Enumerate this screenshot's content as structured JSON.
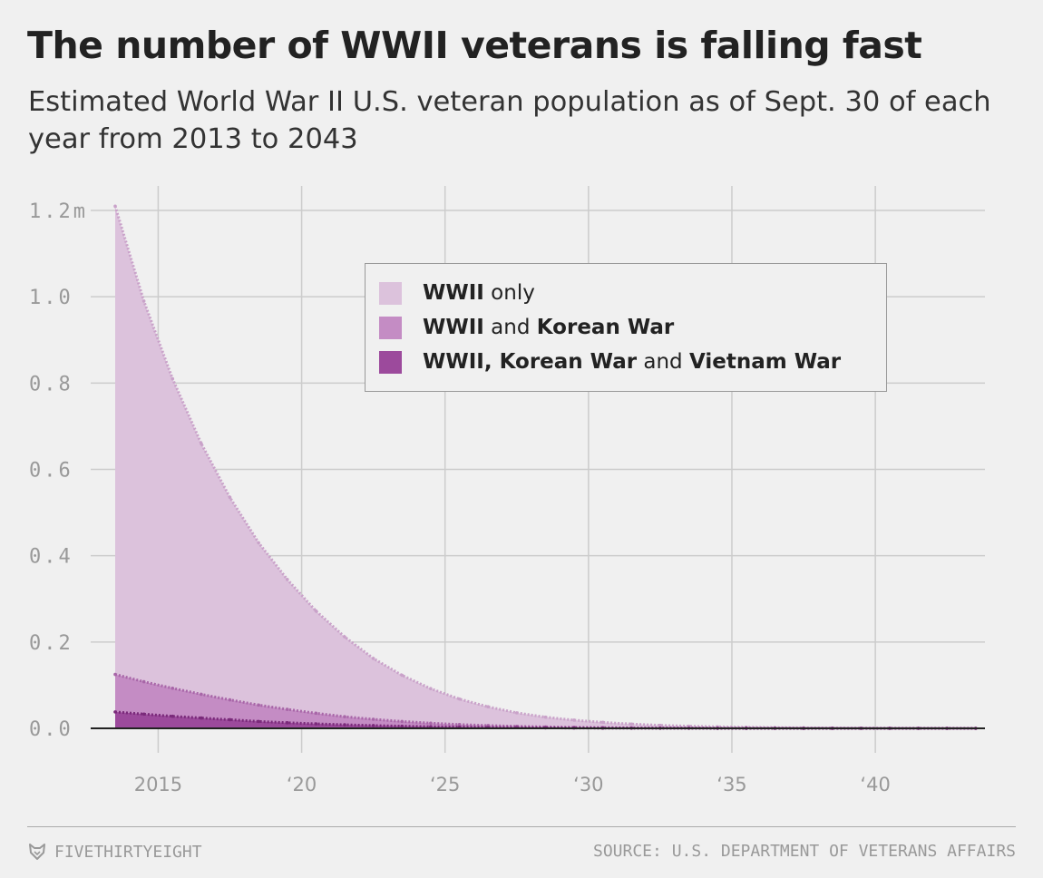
{
  "header": {
    "title": "The number of WWII veterans is falling fast",
    "subtitle": "Estimated World War II U.S. veteran population as of Sept. 30 of each year from 2013 to 2043"
  },
  "legend": {
    "items": [
      {
        "parts": [
          {
            "text": "WWII",
            "bold": true
          },
          {
            "text": " only",
            "bold": false
          }
        ],
        "color": "#dcc2dc"
      },
      {
        "parts": [
          {
            "text": "WWII",
            "bold": true
          },
          {
            "text": " and ",
            "bold": false
          },
          {
            "text": "Korean War",
            "bold": true
          }
        ],
        "color": "#c48cc4"
      },
      {
        "parts": [
          {
            "text": "WWII, Korean War",
            "bold": true
          },
          {
            "text": " and ",
            "bold": false
          },
          {
            "text": "Vietnam War",
            "bold": true
          }
        ],
        "color": "#9c4a9c"
      }
    ]
  },
  "footer": {
    "brand": "FIVETHIRTYEIGHT",
    "brand_icon": "fivethirtyeight-fox-icon",
    "source": "SOURCE: U.S. DEPARTMENT OF VETERANS AFFAIRS"
  },
  "chart_data": {
    "type": "area",
    "stacked": false,
    "x": [
      2013,
      2014,
      2015,
      2016,
      2017,
      2018,
      2019,
      2020,
      2021,
      2022,
      2023,
      2024,
      2025,
      2026,
      2027,
      2028,
      2029,
      2030,
      2031,
      2032,
      2033,
      2034,
      2035,
      2036,
      2037,
      2038,
      2039,
      2040,
      2041,
      2042,
      2043
    ],
    "series": [
      {
        "name": "WWII only",
        "color": "#dcc2dc",
        "line_color": "#c9a2c9",
        "values": [
          1.21,
          0.99,
          0.81,
          0.66,
          0.535,
          0.43,
          0.345,
          0.272,
          0.212,
          0.162,
          0.123,
          0.092,
          0.068,
          0.05,
          0.036,
          0.026,
          0.019,
          0.014,
          0.01,
          0.007,
          0.005,
          0.0035,
          0.0025,
          0.0017,
          0.0012,
          0.0008,
          0.0005,
          0.0003,
          0.0002,
          0.0001,
          0.0
        ]
      },
      {
        "name": "WWII and Korean War",
        "color": "#c48cc4",
        "line_color": "#a866a8",
        "values": [
          0.125,
          0.108,
          0.093,
          0.079,
          0.066,
          0.054,
          0.044,
          0.035,
          0.027,
          0.021,
          0.016,
          0.012,
          0.0088,
          0.0065,
          0.0047,
          0.0034,
          0.0024,
          0.0017,
          0.0012,
          0.0008,
          0.0006,
          0.0004,
          0.0003,
          0.0002,
          0.0001,
          0.0001,
          0.0,
          0.0,
          0.0,
          0.0,
          0.0
        ]
      },
      {
        "name": "WWII, Korean War and Vietnam War",
        "color": "#9c4a9c",
        "line_color": "#7a2a7a",
        "values": [
          0.038,
          0.033,
          0.028,
          0.024,
          0.02,
          0.016,
          0.013,
          0.0105,
          0.0083,
          0.0065,
          0.005,
          0.0038,
          0.0029,
          0.0021,
          0.0016,
          0.0011,
          0.0008,
          0.0006,
          0.0004,
          0.0003,
          0.0002,
          0.0001,
          0.0001,
          0.0,
          0.0,
          0.0,
          0.0,
          0.0,
          0.0,
          0.0,
          0.0
        ]
      }
    ],
    "y_ticks": [
      {
        "value": 0.0,
        "label": "0.0"
      },
      {
        "value": 0.2,
        "label": "0.2"
      },
      {
        "value": 0.4,
        "label": "0.4"
      },
      {
        "value": 0.6,
        "label": "0.6"
      },
      {
        "value": 0.8,
        "label": "0.8"
      },
      {
        "value": 1.0,
        "label": "1.0"
      },
      {
        "value": 1.2,
        "label": "1.2m"
      }
    ],
    "x_ticks": [
      {
        "value": 2015,
        "label": "2015"
      },
      {
        "value": 2020,
        "label": "‘20"
      },
      {
        "value": 2025,
        "label": "‘25"
      },
      {
        "value": 2030,
        "label": "‘30"
      },
      {
        "value": 2035,
        "label": "‘35"
      },
      {
        "value": 2040,
        "label": "‘40"
      }
    ],
    "xlim": [
      2013,
      2043
    ],
    "ylim": [
      0,
      1.2
    ],
    "grid": true,
    "legend_position": "top-right",
    "xlabel": "",
    "ylabel": ""
  }
}
